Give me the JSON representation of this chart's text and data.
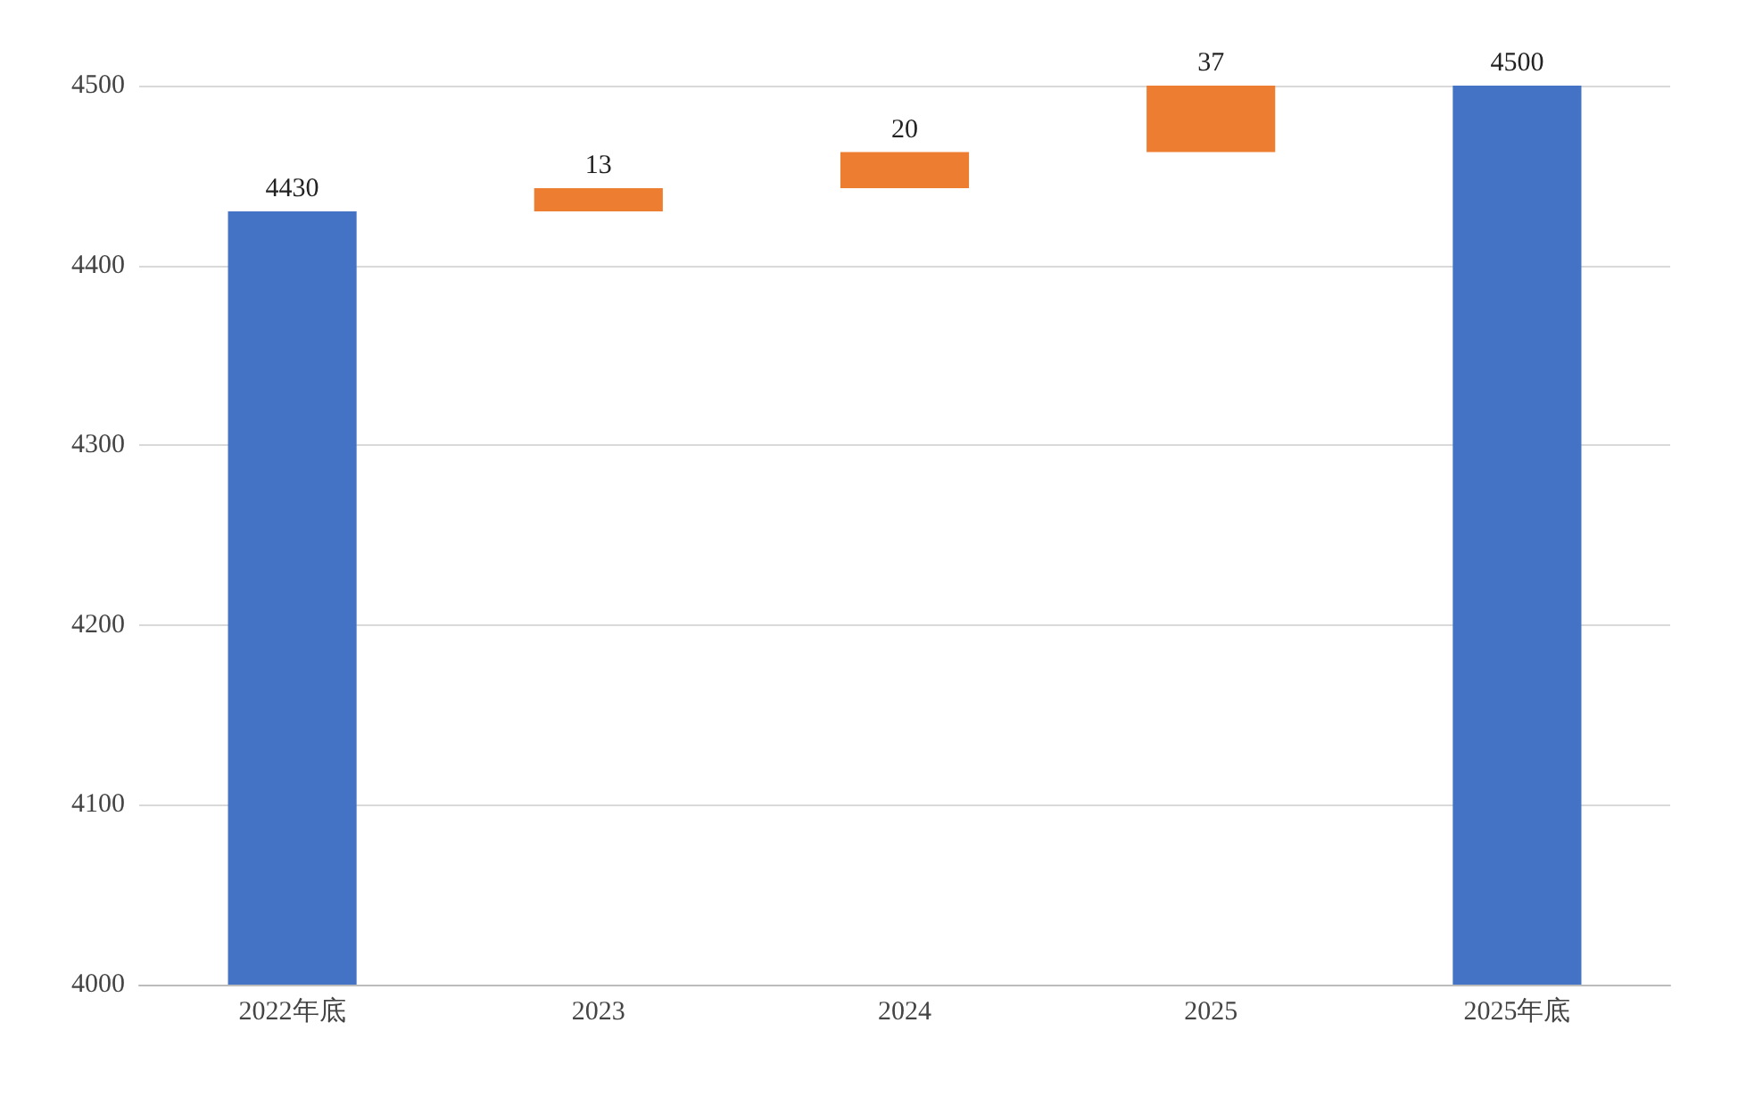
{
  "chart_data": {
    "type": "bar",
    "categories": [
      "2022年底",
      "2023",
      "2024",
      "2025",
      "2025年底"
    ],
    "values": [
      4430,
      13,
      20,
      37,
      4500
    ],
    "base": [
      null,
      4430,
      4443,
      4463,
      null
    ],
    "colors": [
      "#4472c4",
      "#ed7d31",
      "#ed7d31",
      "#ed7d31",
      "#4472c4"
    ],
    "data_labels": true,
    "ylim": [
      4000,
      4500
    ],
    "yticks": [
      4000,
      4100,
      4200,
      4300,
      4400,
      4500
    ],
    "grid": "y"
  }
}
